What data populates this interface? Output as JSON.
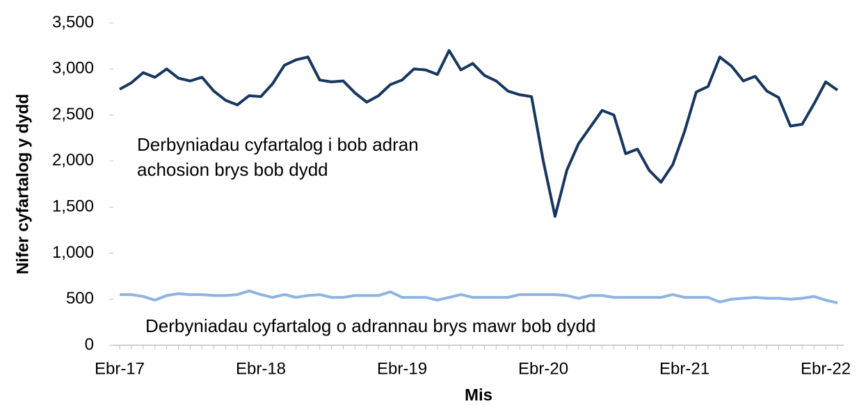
{
  "chart_data": {
    "type": "line",
    "y_label": "Nifer cyfartalog y dydd",
    "x_label": "Mis",
    "categories": [
      "Ebr-17",
      null,
      null,
      null,
      null,
      null,
      null,
      null,
      null,
      null,
      null,
      null,
      "Ebr-18",
      null,
      null,
      null,
      null,
      null,
      null,
      null,
      null,
      null,
      null,
      null,
      "Ebr-19",
      null,
      null,
      null,
      null,
      null,
      null,
      null,
      null,
      null,
      null,
      null,
      "Ebr-20",
      null,
      null,
      null,
      null,
      null,
      null,
      null,
      null,
      null,
      null,
      null,
      "Ebr-21",
      null,
      null,
      null,
      null,
      null,
      null,
      null,
      null,
      null,
      null,
      null,
      "Ebr-22",
      null
    ],
    "series": [
      {
        "name": "Derbyniadau cyfartalog i bob adran achosion brys bob dydd",
        "color": "#17375e",
        "values": [
          2780,
          2850,
          2960,
          2910,
          3000,
          2900,
          2870,
          2910,
          2760,
          2660,
          2610,
          2710,
          2700,
          2840,
          3040,
          3100,
          3130,
          2880,
          2860,
          2870,
          2740,
          2640,
          2710,
          2830,
          2880,
          3000,
          2990,
          2940,
          3200,
          2990,
          3060,
          2930,
          2870,
          2760,
          2720,
          2700,
          2000,
          1400,
          1900,
          2190,
          2370,
          2550,
          2500,
          2080,
          2130,
          1900,
          1770,
          1960,
          2320,
          2750,
          2810,
          3130,
          3030,
          2870,
          2920,
          2760,
          2690,
          2380,
          2400,
          2620,
          2860,
          2770
        ]
      },
      {
        "name": "Derbyniadau cyfartalog o adrannau brys mawr bob dydd",
        "color": "#8db4e2",
        "values": [
          550,
          550,
          530,
          490,
          540,
          560,
          550,
          550,
          540,
          540,
          550,
          590,
          550,
          520,
          550,
          520,
          540,
          550,
          520,
          520,
          540,
          540,
          540,
          580,
          520,
          520,
          520,
          490,
          520,
          550,
          520,
          520,
          520,
          520,
          550,
          550,
          550,
          550,
          540,
          510,
          540,
          540,
          520,
          520,
          520,
          520,
          520,
          550,
          520,
          520,
          520,
          470,
          500,
          510,
          520,
          510,
          510,
          500,
          510,
          530,
          490,
          460
        ]
      }
    ],
    "ylim": [
      0,
      3500
    ],
    "yticks": [
      0,
      500,
      {
        "value": 1000,
        "label": "1,000"
      },
      {
        "value": 1500,
        "label": "1,500"
      },
      {
        "value": 2000,
        "label": "2,000"
      },
      {
        "value": 2500,
        "label": "2,500"
      },
      {
        "value": 3000,
        "label": "3,000"
      },
      {
        "value": 3500,
        "label": "3,500"
      }
    ],
    "grid": false
  }
}
